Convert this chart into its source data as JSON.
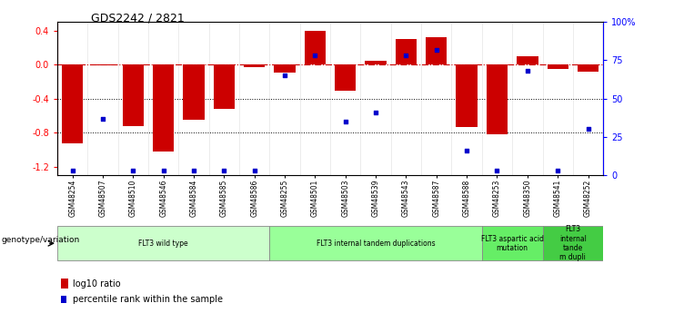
{
  "title": "GDS2242 / 2821",
  "samples": [
    "GSM48254",
    "GSM48507",
    "GSM48510",
    "GSM48546",
    "GSM48584",
    "GSM48585",
    "GSM48586",
    "GSM48255",
    "GSM48501",
    "GSM48503",
    "GSM48539",
    "GSM48543",
    "GSM48587",
    "GSM48588",
    "GSM48253",
    "GSM48350",
    "GSM48541",
    "GSM48252"
  ],
  "log10_ratio": [
    -0.93,
    -0.01,
    -0.72,
    -1.02,
    -0.65,
    -0.52,
    -0.03,
    -0.09,
    0.4,
    -0.31,
    0.04,
    0.3,
    0.32,
    -0.73,
    -0.82,
    0.1,
    -0.05,
    -0.08
  ],
  "percentile_rank": [
    3,
    37,
    3,
    3,
    3,
    3,
    3,
    65,
    78,
    35,
    41,
    78,
    82,
    16,
    3,
    68,
    3,
    30
  ],
  "groups": [
    {
      "label": "FLT3 wild type",
      "start": 0,
      "end": 7,
      "color": "#ccffcc"
    },
    {
      "label": "FLT3 internal tandem duplications",
      "start": 7,
      "end": 14,
      "color": "#99ff99"
    },
    {
      "label": "FLT3 aspartic acid\nmutation",
      "start": 14,
      "end": 16,
      "color": "#66ee66"
    },
    {
      "label": "FLT3\ninternal\ntande\nm dupli",
      "start": 16,
      "end": 18,
      "color": "#44cc44"
    }
  ],
  "ylim_left": [
    -1.3,
    0.5
  ],
  "ylim_right": [
    0,
    100
  ],
  "ylabel_left_ticks": [
    -1.2,
    -0.8,
    -0.4,
    0.0,
    0.4
  ],
  "ylabel_right_ticks": [
    0,
    25,
    50,
    75,
    100
  ],
  "ylabel_right_labels": [
    "0",
    "25",
    "50",
    "75",
    "100%"
  ],
  "bar_color": "#cc0000",
  "dot_color": "#0000cc",
  "hline_color": "#cc0000",
  "dotted_line_color": "#000000",
  "legend_log10": "log10 ratio",
  "legend_pct": "percentile rank within the sample",
  "genotype_label": "genotype/variation"
}
